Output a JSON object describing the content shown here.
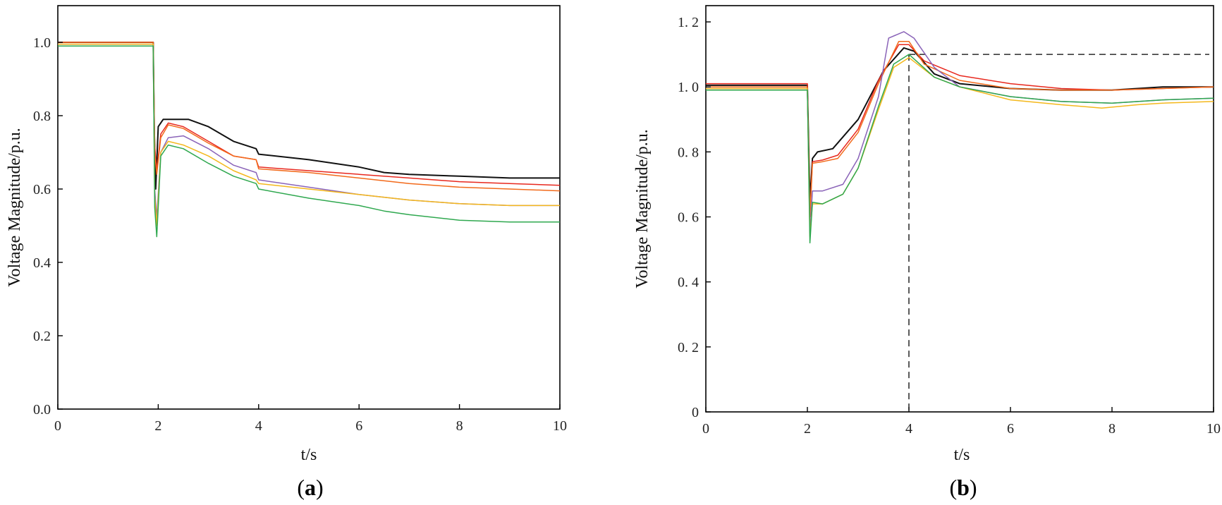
{
  "chart_data": [
    {
      "type": "line",
      "panel_label": "a",
      "xlabel": "t/s",
      "ylabel": "Voltage Magnitude/p.u.",
      "xlim": [
        0,
        10
      ],
      "ylim": [
        0,
        1.1
      ],
      "xticks": [
        0,
        2,
        4,
        6,
        8,
        10
      ],
      "xtick_labels": [
        "0",
        "2",
        "4",
        "6",
        "8",
        "10"
      ],
      "yticks": [
        0,
        0.2,
        0.4,
        0.6,
        0.8,
        1.0
      ],
      "ytick_labels": [
        "0.0",
        "0.2",
        "0.4",
        "0.6",
        "0.8",
        "1.0"
      ],
      "series": [
        {
          "name": "black",
          "color": "#111111",
          "points": [
            [
              0,
              1.0
            ],
            [
              1.9,
              1.0
            ],
            [
              1.92,
              0.77
            ],
            [
              1.95,
              0.6
            ],
            [
              2.0,
              0.77
            ],
            [
              2.1,
              0.79
            ],
            [
              2.3,
              0.79
            ],
            [
              2.6,
              0.79
            ],
            [
              3.0,
              0.77
            ],
            [
              3.5,
              0.73
            ],
            [
              3.95,
              0.71
            ],
            [
              4.0,
              0.695
            ],
            [
              5.0,
              0.68
            ],
            [
              6.0,
              0.66
            ],
            [
              6.5,
              0.645
            ],
            [
              7.0,
              0.64
            ],
            [
              8.0,
              0.635
            ],
            [
              9.0,
              0.63
            ],
            [
              10.0,
              0.63
            ]
          ]
        },
        {
          "name": "red",
          "color": "#e8281e",
          "points": [
            [
              0,
              1.0
            ],
            [
              1.9,
              1.0
            ],
            [
              1.93,
              0.72
            ],
            [
              1.97,
              0.65
            ],
            [
              2.05,
              0.75
            ],
            [
              2.2,
              0.78
            ],
            [
              2.5,
              0.77
            ],
            [
              3.0,
              0.73
            ],
            [
              3.5,
              0.69
            ],
            [
              3.95,
              0.68
            ],
            [
              4.0,
              0.66
            ],
            [
              5.0,
              0.65
            ],
            [
              6.0,
              0.64
            ],
            [
              7.0,
              0.63
            ],
            [
              8.0,
              0.62
            ],
            [
              9.0,
              0.615
            ],
            [
              10.0,
              0.61
            ]
          ]
        },
        {
          "name": "orange",
          "color": "#f26a1b",
          "points": [
            [
              0,
              1.0
            ],
            [
              1.9,
              1.0
            ],
            [
              1.93,
              0.7
            ],
            [
              1.97,
              0.64
            ],
            [
              2.05,
              0.74
            ],
            [
              2.2,
              0.775
            ],
            [
              2.5,
              0.765
            ],
            [
              3.0,
              0.725
            ],
            [
              3.5,
              0.69
            ],
            [
              3.95,
              0.68
            ],
            [
              4.0,
              0.655
            ],
            [
              5.0,
              0.645
            ],
            [
              6.0,
              0.63
            ],
            [
              7.0,
              0.615
            ],
            [
              8.0,
              0.605
            ],
            [
              9.0,
              0.6
            ],
            [
              10.0,
              0.595
            ]
          ]
        },
        {
          "name": "purple",
          "color": "#8a63b8",
          "points": [
            [
              0,
              0.995
            ],
            [
              1.9,
              0.995
            ],
            [
              1.93,
              0.6
            ],
            [
              1.97,
              0.52
            ],
            [
              2.05,
              0.7
            ],
            [
              2.2,
              0.74
            ],
            [
              2.5,
              0.745
            ],
            [
              3.0,
              0.71
            ],
            [
              3.5,
              0.665
            ],
            [
              3.95,
              0.645
            ],
            [
              4.0,
              0.625
            ],
            [
              5.0,
              0.605
            ],
            [
              6.0,
              0.585
            ],
            [
              7.0,
              0.57
            ],
            [
              8.0,
              0.56
            ],
            [
              9.0,
              0.555
            ],
            [
              10.0,
              0.555
            ]
          ]
        },
        {
          "name": "yellow",
          "color": "#f4b81c",
          "points": [
            [
              0,
              0.995
            ],
            [
              1.9,
              0.995
            ],
            [
              1.93,
              0.58
            ],
            [
              1.97,
              0.5
            ],
            [
              2.05,
              0.7
            ],
            [
              2.2,
              0.73
            ],
            [
              2.5,
              0.72
            ],
            [
              3.0,
              0.69
            ],
            [
              3.5,
              0.65
            ],
            [
              3.95,
              0.625
            ],
            [
              4.0,
              0.615
            ],
            [
              5.0,
              0.6
            ],
            [
              6.0,
              0.585
            ],
            [
              7.0,
              0.57
            ],
            [
              8.0,
              0.56
            ],
            [
              9.0,
              0.555
            ],
            [
              10.0,
              0.555
            ]
          ]
        },
        {
          "name": "green",
          "color": "#2fa84f",
          "points": [
            [
              0,
              0.99
            ],
            [
              1.9,
              0.99
            ],
            [
              1.93,
              0.55
            ],
            [
              1.97,
              0.47
            ],
            [
              2.05,
              0.69
            ],
            [
              2.2,
              0.72
            ],
            [
              2.5,
              0.71
            ],
            [
              3.0,
              0.67
            ],
            [
              3.5,
              0.635
            ],
            [
              3.95,
              0.615
            ],
            [
              4.0,
              0.6
            ],
            [
              5.0,
              0.575
            ],
            [
              6.0,
              0.555
            ],
            [
              6.5,
              0.54
            ],
            [
              7.0,
              0.53
            ],
            [
              8.0,
              0.515
            ],
            [
              9.0,
              0.51
            ],
            [
              10.0,
              0.51
            ]
          ]
        }
      ]
    },
    {
      "type": "line",
      "panel_label": "b",
      "xlabel": "t/s",
      "ylabel": "Voltage Magnitude/p.u.",
      "xlim": [
        0,
        10
      ],
      "ylim": [
        0,
        1.25
      ],
      "xticks": [
        0,
        2,
        4,
        6,
        8,
        10
      ],
      "xtick_labels": [
        "0",
        "2",
        "4",
        "6",
        "8",
        "10"
      ],
      "yticks": [
        0,
        0.2,
        0.4,
        0.6,
        0.8,
        1.0,
        1.2
      ],
      "ytick_labels": [
        "0",
        "0. 2",
        "0. 4",
        "0. 6",
        "0. 8",
        "1. 0",
        "1. 2"
      ],
      "reference_lines": {
        "horizontal_y": 1.1,
        "horizontal_from_x": 4.0,
        "vertical_x": 4.0
      },
      "series": [
        {
          "name": "black",
          "color": "#111111",
          "points": [
            [
              0,
              1.005
            ],
            [
              2.0,
              1.005
            ],
            [
              2.05,
              0.65
            ],
            [
              2.1,
              0.78
            ],
            [
              2.2,
              0.8
            ],
            [
              2.5,
              0.81
            ],
            [
              3.0,
              0.9
            ],
            [
              3.5,
              1.05
            ],
            [
              3.9,
              1.12
            ],
            [
              4.1,
              1.11
            ],
            [
              4.5,
              1.04
            ],
            [
              5.0,
              1.01
            ],
            [
              6.0,
              0.995
            ],
            [
              7.0,
              0.99
            ],
            [
              8.0,
              0.99
            ],
            [
              9.0,
              1.0
            ],
            [
              10.0,
              1.0
            ]
          ]
        },
        {
          "name": "red",
          "color": "#e8281e",
          "points": [
            [
              0,
              1.01
            ],
            [
              2.0,
              1.01
            ],
            [
              2.05,
              0.6
            ],
            [
              2.1,
              0.77
            ],
            [
              2.3,
              0.775
            ],
            [
              2.6,
              0.79
            ],
            [
              3.0,
              0.87
            ],
            [
              3.4,
              1.02
            ],
            [
              3.8,
              1.13
            ],
            [
              4.0,
              1.13
            ],
            [
              4.3,
              1.08
            ],
            [
              5.0,
              1.035
            ],
            [
              6.0,
              1.01
            ],
            [
              7.0,
              0.995
            ],
            [
              8.0,
              0.99
            ],
            [
              9.0,
              0.995
            ],
            [
              10.0,
              1.0
            ]
          ]
        },
        {
          "name": "orange",
          "color": "#f26a1b",
          "points": [
            [
              0,
              1.0
            ],
            [
              2.0,
              1.0
            ],
            [
              2.05,
              0.6
            ],
            [
              2.1,
              0.765
            ],
            [
              2.3,
              0.77
            ],
            [
              2.6,
              0.78
            ],
            [
              3.0,
              0.86
            ],
            [
              3.4,
              1.01
            ],
            [
              3.8,
              1.14
            ],
            [
              4.0,
              1.14
            ],
            [
              4.3,
              1.07
            ],
            [
              5.0,
              1.02
            ],
            [
              6.0,
              0.995
            ],
            [
              7.0,
              0.99
            ],
            [
              8.0,
              0.99
            ],
            [
              9.0,
              0.995
            ],
            [
              10.0,
              1.0
            ]
          ]
        },
        {
          "name": "purple",
          "color": "#8a63b8",
          "points": [
            [
              0,
              0.995
            ],
            [
              2.0,
              0.995
            ],
            [
              2.05,
              0.55
            ],
            [
              2.1,
              0.68
            ],
            [
              2.3,
              0.68
            ],
            [
              2.7,
              0.7
            ],
            [
              3.0,
              0.78
            ],
            [
              3.4,
              0.97
            ],
            [
              3.6,
              1.15
            ],
            [
              3.9,
              1.17
            ],
            [
              4.1,
              1.15
            ],
            [
              4.5,
              1.06
            ],
            [
              5.0,
              1.0
            ],
            [
              6.0,
              0.97
            ],
            [
              7.0,
              0.955
            ],
            [
              8.0,
              0.95
            ],
            [
              9.0,
              0.96
            ],
            [
              10.0,
              0.965
            ]
          ]
        },
        {
          "name": "yellow",
          "color": "#f4b81c",
          "points": [
            [
              0,
              0.995
            ],
            [
              2.0,
              0.995
            ],
            [
              2.05,
              0.54
            ],
            [
              2.1,
              0.64
            ],
            [
              2.3,
              0.64
            ],
            [
              2.7,
              0.67
            ],
            [
              3.0,
              0.75
            ],
            [
              3.4,
              0.93
            ],
            [
              3.7,
              1.06
            ],
            [
              4.0,
              1.09
            ],
            [
              4.5,
              1.03
            ],
            [
              5.0,
              1.0
            ],
            [
              6.0,
              0.96
            ],
            [
              7.0,
              0.945
            ],
            [
              7.8,
              0.935
            ],
            [
              8.5,
              0.945
            ],
            [
              9.0,
              0.95
            ],
            [
              10.0,
              0.955
            ]
          ]
        },
        {
          "name": "green",
          "color": "#2fa84f",
          "points": [
            [
              0,
              0.99
            ],
            [
              2.0,
              0.99
            ],
            [
              2.05,
              0.52
            ],
            [
              2.1,
              0.645
            ],
            [
              2.3,
              0.64
            ],
            [
              2.7,
              0.67
            ],
            [
              3.0,
              0.75
            ],
            [
              3.4,
              0.94
            ],
            [
              3.7,
              1.07
            ],
            [
              4.0,
              1.1
            ],
            [
              4.5,
              1.03
            ],
            [
              5.0,
              1.0
            ],
            [
              6.0,
              0.97
            ],
            [
              7.0,
              0.955
            ],
            [
              8.0,
              0.95
            ],
            [
              9.0,
              0.96
            ],
            [
              10.0,
              0.965
            ]
          ]
        }
      ]
    }
  ]
}
